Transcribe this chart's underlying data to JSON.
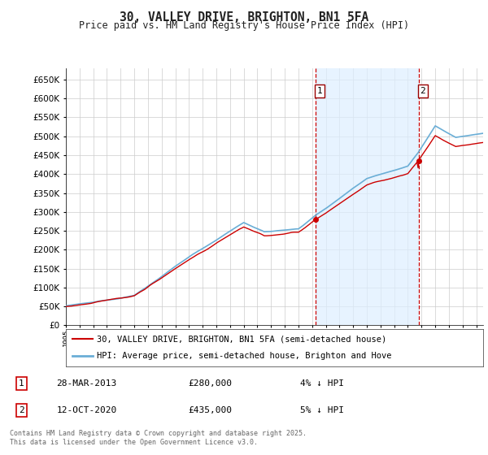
{
  "title_line1": "30, VALLEY DRIVE, BRIGHTON, BN1 5FA",
  "title_line2": "Price paid vs. HM Land Registry's House Price Index (HPI)",
  "legend_line1": "30, VALLEY DRIVE, BRIGHTON, BN1 5FA (semi-detached house)",
  "legend_line2": "HPI: Average price, semi-detached house, Brighton and Hove",
  "annotation1": {
    "num": "1",
    "date": "28-MAR-2013",
    "price": "£280,000",
    "pct": "4% ↓ HPI"
  },
  "annotation2": {
    "num": "2",
    "date": "12-OCT-2020",
    "price": "£435,000",
    "pct": "5% ↓ HPI"
  },
  "footnote": "Contains HM Land Registry data © Crown copyright and database right 2025.\nThis data is licensed under the Open Government Licence v3.0.",
  "ylabel_ticks": [
    0,
    50000,
    100000,
    150000,
    200000,
    250000,
    300000,
    350000,
    400000,
    450000,
    500000,
    550000,
    600000,
    650000
  ],
  "ylim": [
    0,
    680000
  ],
  "xlim_left": 1995,
  "xlim_right": 2025.5,
  "purchase1_year": 2013.23,
  "purchase1_price": 280000,
  "purchase2_year": 2020.79,
  "purchase2_price": 435000,
  "hpi_color": "#6aaed6",
  "price_color": "#cc0000",
  "vline_color": "#cc0000",
  "shade_color": "#ddeeff",
  "background_color": "#ffffff",
  "grid_color": "#cccccc",
  "title_fontsize": 10.5,
  "subtitle_fontsize": 8.5,
  "tick_fontsize": 7.5,
  "legend_fontsize": 7.5,
  "annot_fontsize": 8
}
